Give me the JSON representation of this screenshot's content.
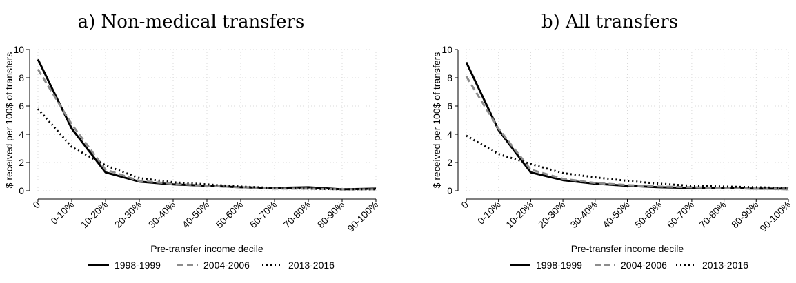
{
  "chart_data": [
    {
      "type": "line",
      "title": "a) Non-medical transfers",
      "xlabel": "Pre-transfer income decile",
      "ylabel": "$ received per 100$ of transfers",
      "categories": [
        "0",
        "0-10%",
        "10-20%",
        "20-30%",
        "30-40%",
        "40-50%",
        "50-60%",
        "60-70%",
        "70-80%",
        "80-90%",
        "90-100%"
      ],
      "ylim": [
        0,
        10
      ],
      "yticks": [
        0,
        2,
        4,
        6,
        8,
        10
      ],
      "grid": true,
      "legend_position": "bottom",
      "series": [
        {
          "name": "1998-1999",
          "values": [
            9.3,
            4.4,
            1.3,
            0.65,
            0.45,
            0.35,
            0.25,
            0.2,
            0.25,
            0.1,
            0.15
          ],
          "color": "#000000",
          "style": "solid"
        },
        {
          "name": "2004-2006",
          "values": [
            8.6,
            4.7,
            1.5,
            0.7,
            0.5,
            0.35,
            0.25,
            0.15,
            0.15,
            0.1,
            0.1
          ],
          "color": "#8c8c8c",
          "style": "dashed"
        },
        {
          "name": "2013-2016",
          "values": [
            5.8,
            3.1,
            1.8,
            0.9,
            0.6,
            0.45,
            0.3,
            0.2,
            0.15,
            0.1,
            0.1
          ],
          "color": "#000000",
          "style": "dotted"
        }
      ]
    },
    {
      "type": "line",
      "title": "b) All transfers",
      "xlabel": "Pre-transfer income decile",
      "ylabel": "$ received per 100$ of transfers",
      "categories": [
        "0",
        "0-10%",
        "10-20%",
        "20-30%",
        "30-40%",
        "40-50%",
        "50-60%",
        "60-70%",
        "70-80%",
        "80-90%",
        "90-100%"
      ],
      "ylim": [
        0,
        10
      ],
      "yticks": [
        0,
        2,
        4,
        6,
        8,
        10
      ],
      "grid": true,
      "legend_position": "bottom",
      "series": [
        {
          "name": "1998-1999",
          "values": [
            9.1,
            4.3,
            1.3,
            0.75,
            0.5,
            0.35,
            0.25,
            0.2,
            0.2,
            0.15,
            0.15
          ],
          "color": "#000000",
          "style": "solid"
        },
        {
          "name": "2004-2006",
          "values": [
            8.1,
            4.4,
            1.5,
            0.85,
            0.55,
            0.4,
            0.3,
            0.25,
            0.2,
            0.15,
            0.1
          ],
          "color": "#8c8c8c",
          "style": "dashed"
        },
        {
          "name": "2013-2016",
          "values": [
            3.9,
            2.6,
            1.9,
            1.25,
            0.95,
            0.7,
            0.5,
            0.35,
            0.3,
            0.25,
            0.2
          ],
          "color": "#000000",
          "style": "dotted"
        }
      ]
    }
  ]
}
